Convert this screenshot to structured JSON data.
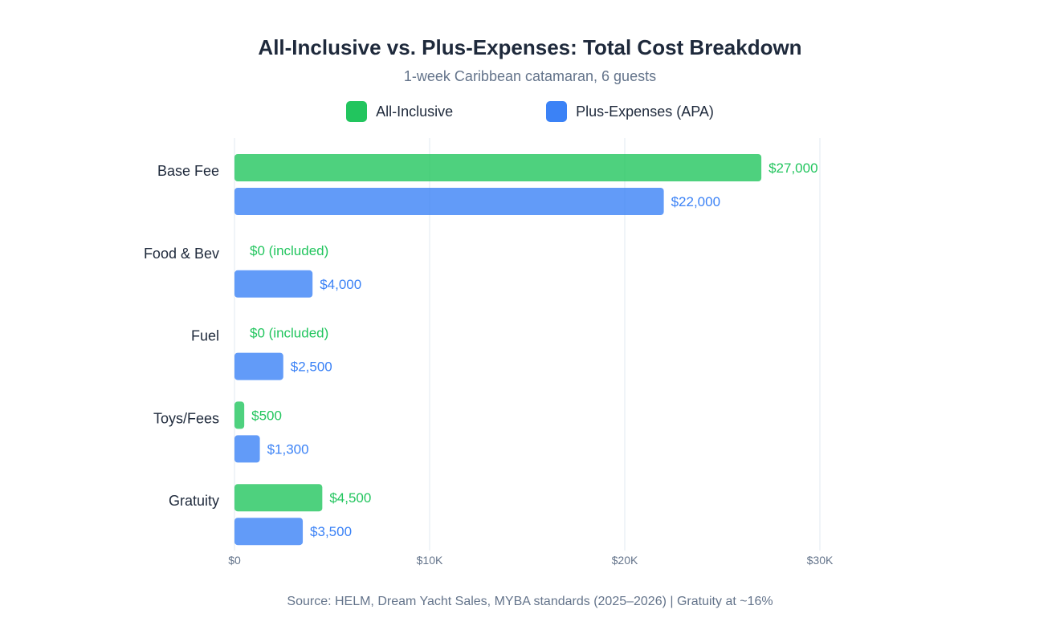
{
  "chart_data": {
    "type": "bar",
    "orientation": "horizontal",
    "title": "All-Inclusive vs. Plus-Expenses: Total Cost Breakdown",
    "subtitle": "1-week Caribbean catamaran, 6 guests",
    "categories": [
      "Base Fee",
      "Food & Bev",
      "Fuel",
      "Toys/Fees",
      "Gratuity"
    ],
    "series": [
      {
        "name": "All-Inclusive",
        "color": "#22c55e",
        "values": [
          27000,
          0,
          0,
          500,
          4500
        ],
        "labels": [
          "$27,000",
          "$0 (included)",
          "$0 (included)",
          "$500",
          "$4,500"
        ]
      },
      {
        "name": "Plus-Expenses (APA)",
        "color": "#3b82f6",
        "values": [
          22000,
          4000,
          2500,
          1300,
          3500
        ],
        "labels": [
          "$22,000",
          "$4,000",
          "$2,500",
          "$1,300",
          "$3,500"
        ]
      }
    ],
    "xlim": [
      0,
      30000
    ],
    "xticks": [
      0,
      10000,
      20000,
      30000
    ],
    "xtick_labels": [
      "$0",
      "$10K",
      "$20K",
      "$30K"
    ],
    "grid": "vertical",
    "legend": "top-center",
    "source": "Source: HELM, Dream Yacht Sales, MYBA standards (2025–2026) | Gratuity at ~16%"
  }
}
